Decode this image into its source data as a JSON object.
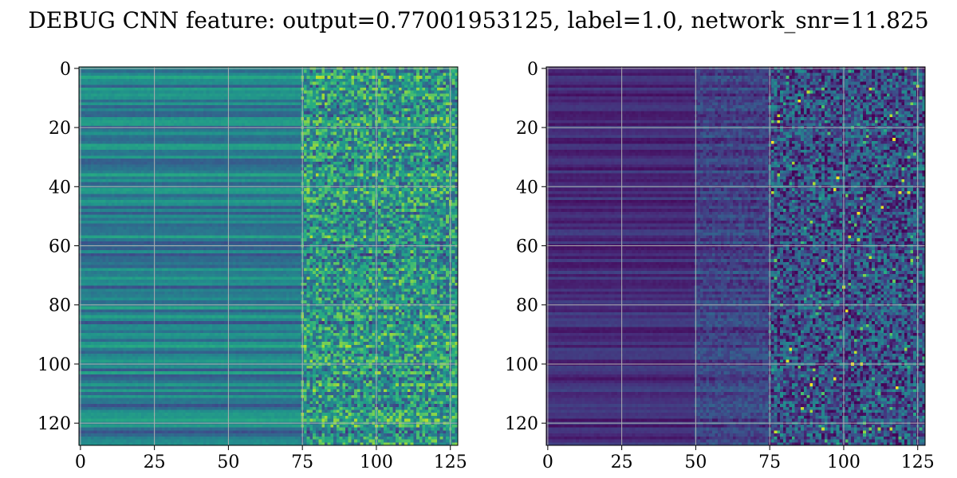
{
  "figure": {
    "title": "DEBUG CNN feature: output=0.77001953125, label=1.0, network_snr=11.825"
  },
  "chart_data": [
    {
      "type": "heatmap",
      "title": "",
      "xlabel": "",
      "ylabel": "",
      "rows": 128,
      "cols": 128,
      "xlim": [
        -0.5,
        127.5
      ],
      "ylim": [
        127.5,
        -0.5
      ],
      "xticks": [
        0,
        25,
        50,
        75,
        100,
        125
      ],
      "yticks": [
        0,
        20,
        40,
        60,
        80,
        100,
        120
      ],
      "grid": true,
      "colormap": "viridis",
      "description_of_values": "left columns smooth horizontal bands, right part (x>75) noisy speckle"
    },
    {
      "type": "heatmap",
      "title": "",
      "xlabel": "",
      "ylabel": "",
      "rows": 128,
      "cols": 128,
      "xlim": [
        -0.5,
        127.5
      ],
      "ylim": [
        127.5,
        -0.5
      ],
      "xticks": [
        0,
        25,
        50,
        75,
        100,
        125
      ],
      "yticks": [
        0,
        20,
        40,
        60,
        80,
        100,
        120
      ],
      "grid": true,
      "colormap": "viridis"
    }
  ]
}
